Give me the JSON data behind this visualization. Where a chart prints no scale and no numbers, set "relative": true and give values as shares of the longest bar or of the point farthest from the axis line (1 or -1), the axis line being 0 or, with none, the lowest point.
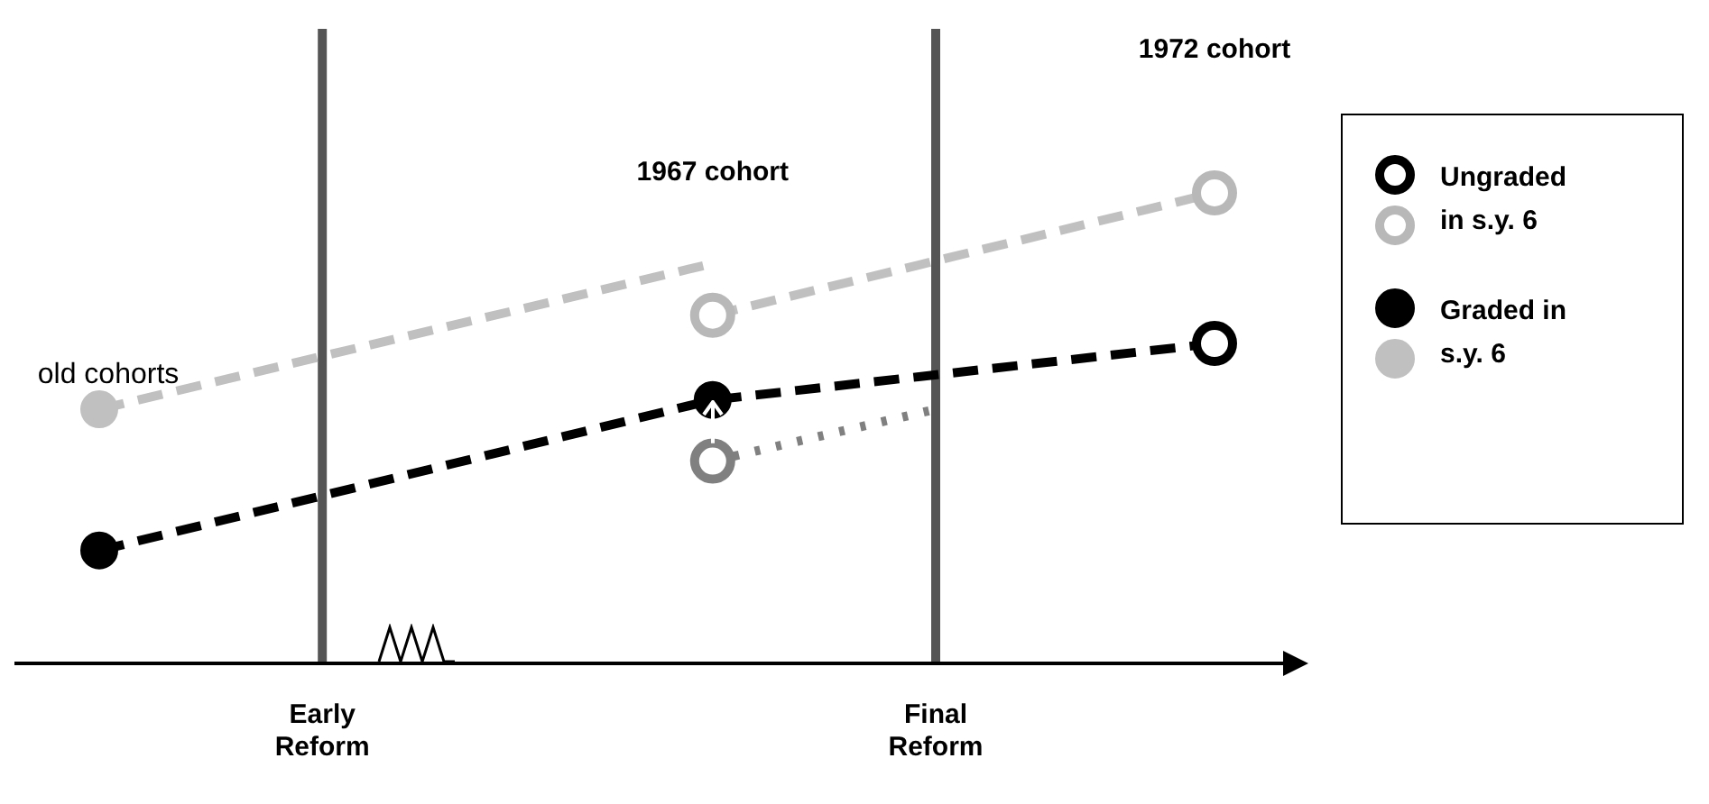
{
  "chart_data": {
    "type": "line",
    "relative": true,
    "tick_labels": "x",
    "grid": false,
    "legend": "right",
    "marker": "circle",
    "categories": [
      null,
      null,
      null,
      null,
      "Early Reform",
      null,
      null,
      null,
      null,
      null,
      null,
      null,
      null,
      null,
      null,
      "Final Reform",
      null,
      null,
      null,
      null,
      null
    ],
    "series": [
      {
        "color": "#000000",
        "line_style": "dashed",
        "marker": "none",
        "values": [
          0.24,
          null,
          null,
          null,
          null,
          null,
          null,
          null,
          null,
          null,
          null,
          0.56,
          null,
          null,
          null,
          null,
          null,
          null,
          null,
          null,
          0.68
        ]
      },
      {
        "color": "#c0c0c0",
        "line_style": "dashed",
        "marker": "none",
        "values": [
          0.54,
          null,
          null,
          null,
          null,
          null,
          null,
          null,
          null,
          null,
          null,
          0.85,
          null,
          null,
          null,
          null,
          null,
          null,
          null,
          null,
          null
        ]
      },
      {
        "color": "#c0c0c0",
        "line_style": "dashed",
        "marker": "none",
        "values": [
          null,
          null,
          null,
          null,
          null,
          null,
          null,
          null,
          null,
          null,
          null,
          0.74,
          null,
          null,
          null,
          null,
          null,
          null,
          null,
          null,
          1
        ]
      },
      {
        "color": "#808080",
        "line_style": "dotted",
        "marker": "none",
        "values": [
          null,
          null,
          null,
          null,
          null,
          null,
          null,
          null,
          null,
          null,
          null,
          0.43,
          null,
          null,
          null,
          0.54,
          null,
          null,
          null,
          null,
          null
        ]
      },
      {
        "type": "scatter",
        "name": "Ungraded in s.y. 6",
        "color": "#000000",
        "values": [
          null,
          null,
          null,
          null,
          null,
          null,
          null,
          null,
          null,
          null,
          null,
          null,
          null,
          null,
          null,
          null,
          null,
          null,
          null,
          null,
          0.68
        ]
      },
      {
        "type": "scatter",
        "color": "#b8b8b8",
        "values": [
          null,
          null,
          null,
          null,
          null,
          null,
          null,
          null,
          null,
          null,
          null,
          0.74,
          null,
          null,
          null,
          null,
          null,
          null,
          null,
          null,
          1
        ]
      },
      {
        "type": "scatter",
        "color": "#808080",
        "values": [
          null,
          null,
          null,
          null,
          null,
          null,
          null,
          null,
          null,
          null,
          null,
          0.43,
          null,
          null,
          null,
          null,
          null,
          null,
          null,
          null,
          null
        ]
      },
      {
        "type": "scatter",
        "name": "Graded in s.y. 6",
        "color": "#000000",
        "values": [
          0.24,
          null,
          null,
          null,
          null,
          null,
          null,
          null,
          null,
          null,
          null,
          0.56,
          null,
          null,
          null,
          null,
          null,
          null,
          null,
          null,
          null
        ]
      },
      {
        "type": "scatter",
        "color": "#c0c0c0",
        "values": [
          0.54,
          null,
          null,
          null,
          null,
          null,
          null,
          null,
          null,
          null,
          null,
          null,
          null,
          null,
          null,
          null,
          null,
          null,
          null,
          null,
          null
        ]
      }
    ],
    "ref_lines": [
      {
        "axis": "x",
        "value": "Early Reform",
        "color": "#555555"
      },
      {
        "axis": "x",
        "value": "Final Reform",
        "color": "#555555"
      }
    ],
    "annotations": [
      "1972 cohort",
      "1967 cohort",
      "old cohorts"
    ]
  }
}
